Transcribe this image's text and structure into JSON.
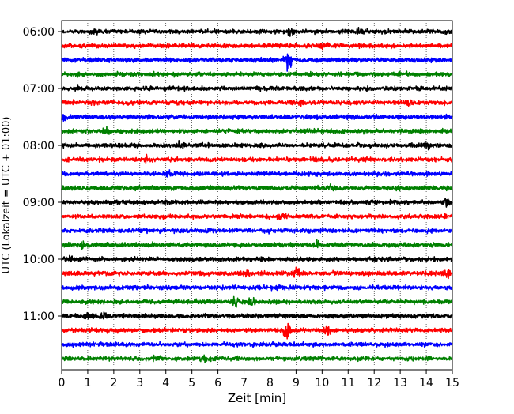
{
  "chart_data": {
    "type": "line",
    "xlabel": "Zeit  [min]",
    "ylabel": "UTC (Lokalzeit = UTC + 01:00)",
    "xlim": [
      0,
      15
    ],
    "x_ticks": [
      0,
      1,
      2,
      3,
      4,
      5,
      6,
      7,
      8,
      9,
      10,
      11,
      12,
      13,
      14,
      15
    ],
    "y_tick_labels": [
      "06:00",
      "07:00",
      "08:00",
      "09:00",
      "10:00",
      "11:00"
    ],
    "grid": "vertical-dotted",
    "trace_interval_minutes": 15,
    "color_cycle": [
      "#000000",
      "#ff0000",
      "#0000ff",
      "#008000"
    ],
    "traces": [
      {
        "start": "06:00",
        "color": "#000000",
        "events": [
          {
            "t": 1.3,
            "amp": 0.6
          },
          {
            "t": 8.8,
            "amp": 0.45
          },
          {
            "t": 11.5,
            "amp": 0.5
          }
        ]
      },
      {
        "start": "06:15",
        "color": "#ff0000",
        "events": [
          {
            "t": 10.1,
            "amp": 0.5
          }
        ]
      },
      {
        "start": "06:30",
        "color": "#0000ff",
        "events": [
          {
            "t": 8.7,
            "amp": 1.6
          }
        ]
      },
      {
        "start": "06:45",
        "color": "#008000",
        "events": []
      },
      {
        "start": "07:00",
        "color": "#000000",
        "events": [
          {
            "t": 0.6,
            "amp": 0.4
          }
        ]
      },
      {
        "start": "07:15",
        "color": "#ff0000",
        "events": [
          {
            "t": 9.2,
            "amp": 0.4
          },
          {
            "t": 13.4,
            "amp": 0.4
          }
        ]
      },
      {
        "start": "07:30",
        "color": "#0000ff",
        "events": [
          {
            "t": 0.05,
            "amp": 0.7
          }
        ]
      },
      {
        "start": "07:45",
        "color": "#008000",
        "events": [
          {
            "t": 1.7,
            "amp": 0.4
          }
        ]
      },
      {
        "start": "08:00",
        "color": "#000000",
        "events": [
          {
            "t": 4.6,
            "amp": 0.5
          },
          {
            "t": 14.0,
            "amp": 0.5
          }
        ]
      },
      {
        "start": "08:15",
        "color": "#ff0000",
        "events": [
          {
            "t": 3.3,
            "amp": 0.35
          }
        ]
      },
      {
        "start": "08:30",
        "color": "#0000ff",
        "events": [
          {
            "t": 4.1,
            "amp": 0.4
          }
        ]
      },
      {
        "start": "08:45",
        "color": "#008000",
        "events": [
          {
            "t": 10.4,
            "amp": 0.35
          }
        ]
      },
      {
        "start": "09:00",
        "color": "#000000",
        "events": [
          {
            "t": 14.8,
            "amp": 0.5
          }
        ]
      },
      {
        "start": "09:15",
        "color": "#ff0000",
        "events": [
          {
            "t": 8.4,
            "amp": 0.4
          }
        ]
      },
      {
        "start": "09:30",
        "color": "#0000ff",
        "events": []
      },
      {
        "start": "09:45",
        "color": "#008000",
        "events": [
          {
            "t": 9.8,
            "amp": 0.6
          },
          {
            "t": 0.8,
            "amp": 0.35
          }
        ]
      },
      {
        "start": "10:00",
        "color": "#000000",
        "events": [
          {
            "t": 0.3,
            "amp": 0.4
          }
        ]
      },
      {
        "start": "10:15",
        "color": "#ff0000",
        "events": [
          {
            "t": 7.1,
            "amp": 0.7
          },
          {
            "t": 9.0,
            "amp": 0.8
          },
          {
            "t": 14.8,
            "amp": 0.7
          }
        ]
      },
      {
        "start": "10:30",
        "color": "#0000ff",
        "events": [
          {
            "t": 8.3,
            "amp": 0.4
          }
        ]
      },
      {
        "start": "10:45",
        "color": "#008000",
        "events": [
          {
            "t": 6.7,
            "amp": 1.0
          },
          {
            "t": 7.3,
            "amp": 0.8
          }
        ]
      },
      {
        "start": "11:00",
        "color": "#000000",
        "events": [
          {
            "t": 1.6,
            "amp": 0.7
          },
          {
            "t": 0.9,
            "amp": 0.4
          }
        ]
      },
      {
        "start": "11:15",
        "color": "#ff0000",
        "events": [
          {
            "t": 8.65,
            "amp": 2.2
          },
          {
            "t": 10.2,
            "amp": 0.7
          }
        ]
      },
      {
        "start": "11:30",
        "color": "#0000ff",
        "events": []
      },
      {
        "start": "11:45",
        "color": "#008000",
        "events": [
          {
            "t": 3.7,
            "amp": 0.4
          },
          {
            "t": 5.5,
            "amp": 0.4
          }
        ]
      }
    ]
  }
}
